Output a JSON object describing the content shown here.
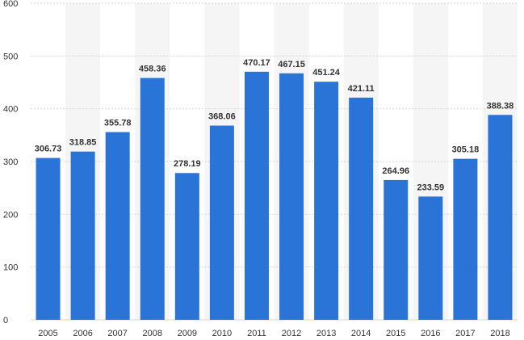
{
  "chart_data": {
    "type": "bar",
    "categories": [
      "2005",
      "2006",
      "2007",
      "2008",
      "2009",
      "2010",
      "2011",
      "2012",
      "2013",
      "2014",
      "2015",
      "2016",
      "2017",
      "2018"
    ],
    "values": [
      306.73,
      318.85,
      355.78,
      458.36,
      278.19,
      368.06,
      470.17,
      467.15,
      451.24,
      421.11,
      264.96,
      233.59,
      305.18,
      388.38
    ],
    "data_labels": [
      "306.73",
      "318.85",
      "355.78",
      "458.36",
      "278.19",
      "368.06",
      "470.17",
      "467.15",
      "451.24",
      "421.11",
      "264.96",
      "233.59",
      "305.18",
      "388.38"
    ],
    "y_ticks": [
      "0",
      "100",
      "200",
      "300",
      "400",
      "500",
      "600"
    ],
    "title": "",
    "xlabel": "",
    "ylabel": "",
    "ylim": [
      0,
      600
    ],
    "grid": true,
    "bar_color": "#2a74d8",
    "alt_band_color": "#f5f5f5",
    "gridline_color": "#d6d6d6"
  }
}
